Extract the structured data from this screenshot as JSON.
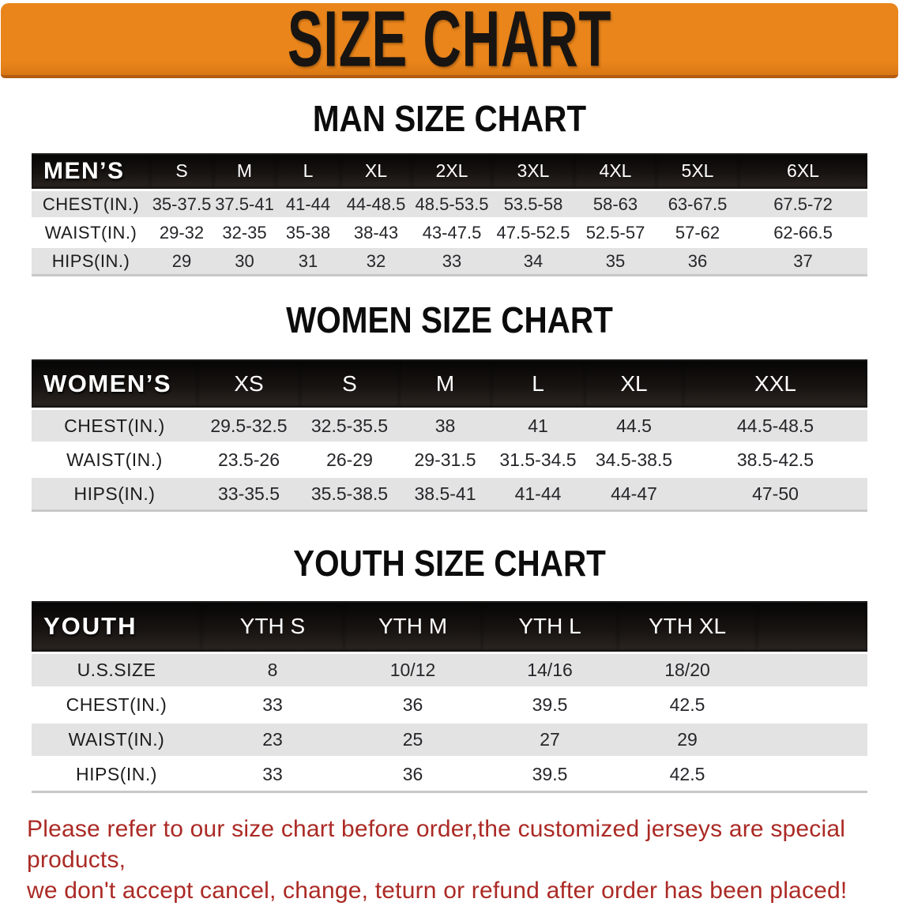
{
  "banner": {
    "title": "SIZE CHART"
  },
  "sections": [
    {
      "id": "men",
      "heading": "MAN SIZE CHART",
      "table": {
        "group_label": "MEN’S",
        "columns": [
          "S",
          "M",
          "L",
          "XL",
          "2XL",
          "3XL",
          "4XL",
          "5XL",
          "6XL"
        ],
        "rows": [
          {
            "label": "CHEST(IN.)",
            "values": [
              "35-37.5",
              "37.5-41",
              "41-44",
              "44-48.5",
              "48.5-53.5",
              "53.5-58",
              "58-63",
              "63-67.5",
              "67.5-72"
            ]
          },
          {
            "label": "WAIST(IN.)",
            "values": [
              "29-32",
              "32-35",
              "35-38",
              "38-43",
              "43-47.5",
              "47.5-52.5",
              "52.5-57",
              "57-62",
              "62-66.5"
            ]
          },
          {
            "label": "HIPS(IN.)",
            "values": [
              "29",
              "30",
              "31",
              "32",
              "33",
              "34",
              "35",
              "36",
              "37"
            ]
          }
        ]
      }
    },
    {
      "id": "women",
      "heading": "WOMEN SIZE CHART",
      "table": {
        "group_label": "WOMEN’S",
        "columns": [
          "XS",
          "S",
          "M",
          "L",
          "XL",
          "XXL"
        ],
        "rows": [
          {
            "label": "CHEST(IN.)",
            "values": [
              "29.5-32.5",
              "32.5-35.5",
              "38",
              "41",
              "44.5",
              "44.5-48.5"
            ]
          },
          {
            "label": "WAIST(IN.)",
            "values": [
              "23.5-26",
              "26-29",
              "29-31.5",
              "31.5-34.5",
              "34.5-38.5",
              "38.5-42.5"
            ]
          },
          {
            "label": "HIPS(IN.)",
            "values": [
              "33-35.5",
              "35.5-38.5",
              "38.5-41",
              "41-44",
              "44-47",
              "47-50"
            ]
          }
        ]
      }
    },
    {
      "id": "youth",
      "heading": "YOUTH SIZE CHART",
      "table": {
        "group_label": "YOUTH",
        "columns": [
          "YTH S",
          "YTH M",
          "YTH L",
          "YTH XL"
        ],
        "rows": [
          {
            "label": "U.S.SIZE",
            "values": [
              "8",
              "10/12",
              "14/16",
              "18/20"
            ]
          },
          {
            "label": "CHEST(IN.)",
            "values": [
              "33",
              "36",
              "39.5",
              "42.5"
            ]
          },
          {
            "label": "WAIST(IN.)",
            "values": [
              "23",
              "25",
              "27",
              "29"
            ]
          },
          {
            "label": "HIPS(IN.)",
            "values": [
              "33",
              "36",
              "39.5",
              "42.5"
            ]
          }
        ]
      }
    }
  ],
  "footer": {
    "line1": "Please refer to our size chart before order,the customized jerseys are special products,",
    "line2": "we don't accept cancel, change, teturn or refund after order has been placed!"
  },
  "colors": {
    "banner_bg": "#e9851b",
    "banner_border": "#b35c10",
    "header_bar": "#171310",
    "row_shade": "#e4e3e3",
    "notice_text": "#ab2a25",
    "heading_text": "#0c0c0c",
    "header_text": "#ffffff"
  }
}
